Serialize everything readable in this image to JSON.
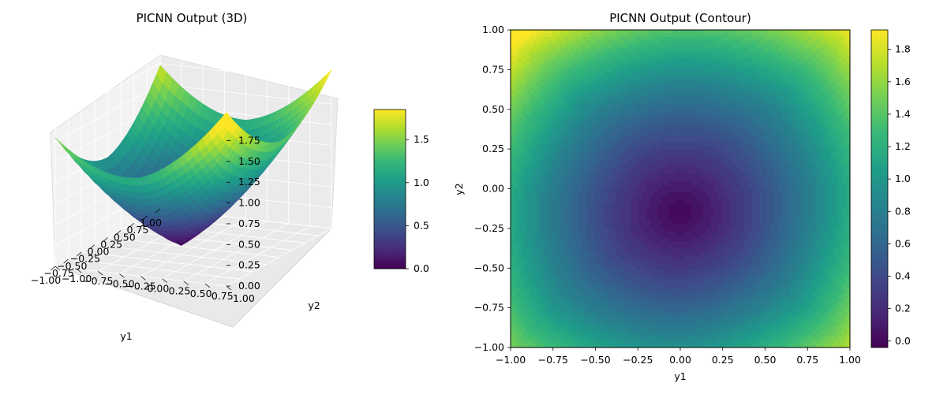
{
  "chart_data": [
    {
      "type": "surface3d",
      "title": "PICNN Output (3D)",
      "xlabel": "y1",
      "ylabel": "y2",
      "zlabel": "",
      "xlim": [
        -1,
        1
      ],
      "ylim": [
        -1,
        1
      ],
      "zlim": [
        0,
        1.85
      ],
      "x_ticks": [
        "−1.00",
        "−0.75",
        "−0.50",
        "−0.25",
        "0.00",
        "0.25",
        "0.50",
        "0.75",
        "1.00"
      ],
      "y_ticks": [
        "−1.00",
        "−0.75",
        "−0.50",
        "−0.25",
        "0.00",
        "0.25",
        "0.50",
        "0.75",
        "1.00"
      ],
      "z_ticks": [
        "0.00",
        "0.25",
        "0.50",
        "0.75",
        "1.00",
        "1.25",
        "1.50",
        "1.75"
      ],
      "colormap": "viridis",
      "colorbar": {
        "min": 0,
        "max": 1.85,
        "ticks": [
          "0.0",
          "0.5",
          "1.0",
          "1.5"
        ]
      },
      "corner_values": {
        "y1=-1,y2=-1": 1.2,
        "y1=1,y2=-1": 1.85,
        "y1=-1,y2=1": 1.85,
        "y1=1,y2=1": 1.2
      },
      "min_value": 0.0,
      "min_location": [
        0.0,
        -0.15
      ]
    },
    {
      "type": "contour",
      "title": "PICNN Output (Contour)",
      "xlabel": "y1",
      "ylabel": "y2",
      "xlim": [
        -1,
        1
      ],
      "ylim": [
        -1,
        1
      ],
      "x_ticks": [
        "−1.00",
        "−0.75",
        "−0.50",
        "−0.25",
        "0.00",
        "0.25",
        "0.50",
        "0.75",
        "1.00"
      ],
      "y_ticks": [
        "1.00",
        "0.75",
        "0.50",
        "0.25",
        "0.00",
        "−0.25",
        "−0.50",
        "−0.75",
        "−1.00"
      ],
      "colormap": "viridis",
      "colorbar": {
        "min": -0.04,
        "max": 1.92,
        "ticks": [
          "1.8",
          "1.6",
          "1.4",
          "1.2",
          "1.0",
          "0.8",
          "0.6",
          "0.4",
          "0.2",
          "0.0"
        ]
      },
      "min_value": 0.0,
      "min_location": [
        0.0,
        -0.15
      ]
    }
  ]
}
